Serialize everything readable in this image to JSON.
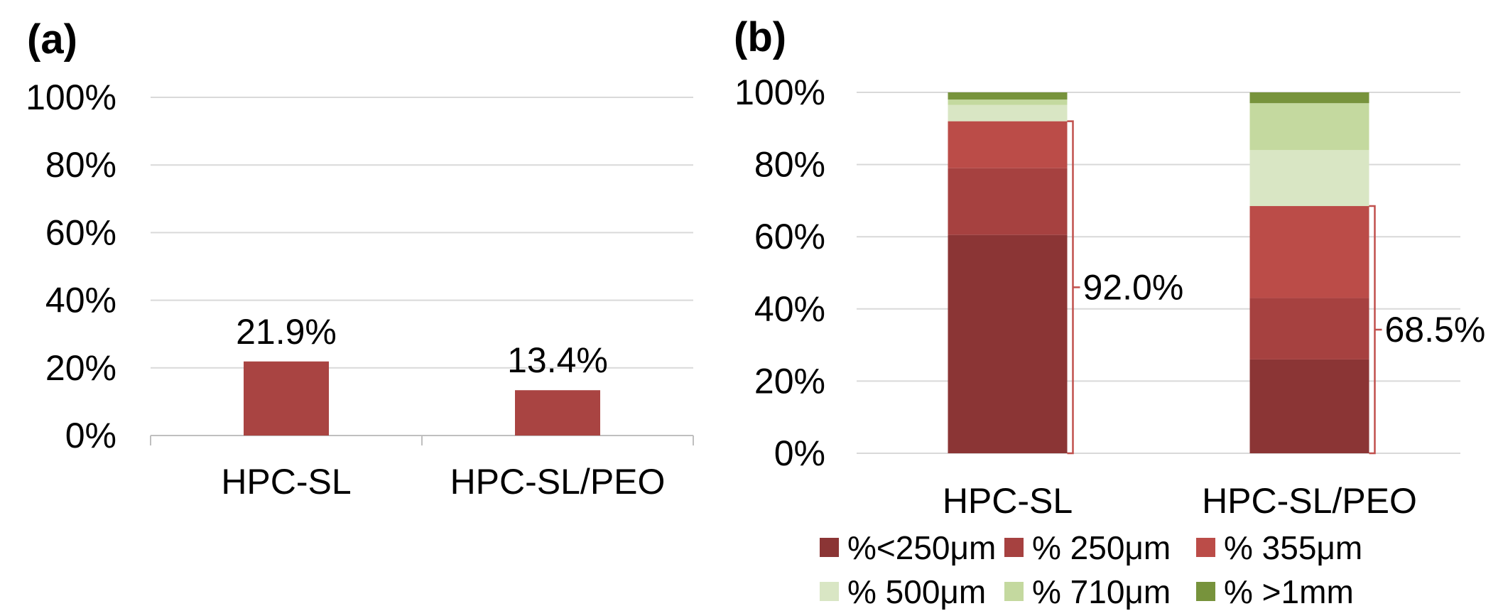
{
  "chart_data": [
    {
      "panel_label": "(a)",
      "type": "bar",
      "categories": [
        "HPC-SL",
        "HPC-SL/PEO"
      ],
      "values": [
        21.9,
        13.4
      ],
      "data_labels": [
        "21.9%",
        "13.4%"
      ],
      "ylim": [
        0,
        100
      ],
      "yticks": [
        "0%",
        "20%",
        "40%",
        "60%",
        "80%",
        "100%"
      ],
      "ytick_values": [
        0,
        20,
        40,
        60,
        80,
        100
      ],
      "grid": true,
      "color": "#a94442"
    },
    {
      "panel_label": "(b)",
      "type": "bar",
      "stacked": true,
      "categories": [
        "HPC-SL",
        "HPC-SL/PEO"
      ],
      "ylim": [
        0,
        100
      ],
      "yticks": [
        "0%",
        "20%",
        "40%",
        "60%",
        "80%",
        "100%"
      ],
      "ytick_values": [
        0,
        20,
        40,
        60,
        80,
        100
      ],
      "grid": true,
      "legend_position": "bottom",
      "series": [
        {
          "name": "%<250μm",
          "values": [
            60.5,
            26.0
          ],
          "color": "#8b3535"
        },
        {
          "name": "% 250μm",
          "values": [
            18.5,
            17.0
          ],
          "color": "#a64140"
        },
        {
          "name": "% 355μm",
          "values": [
            13.0,
            25.5
          ],
          "color": "#bb4c48"
        },
        {
          "name": "% 500μm",
          "values": [
            4.5,
            15.5
          ],
          "color": "#d9e6c4"
        },
        {
          "name": "% 710μm",
          "values": [
            1.5,
            13.0
          ],
          "color": "#c4d99f"
        },
        {
          "name": "% >1mm",
          "values": [
            2.0,
            3.0
          ],
          "color": "#77933c"
        }
      ],
      "brackets": [
        {
          "category": "HPC-SL",
          "value": 92.0,
          "label": "92.0%"
        },
        {
          "category": "HPC-SL/PEO",
          "value": 68.5,
          "label": "68.5%"
        }
      ]
    }
  ]
}
